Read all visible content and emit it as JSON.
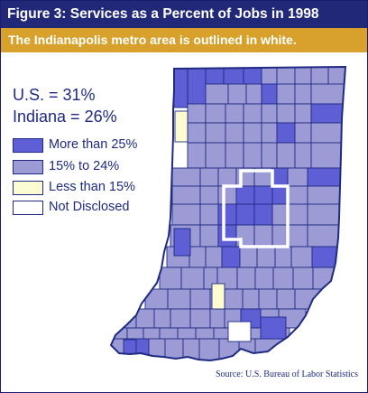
{
  "header": {
    "title": "Figure 3: Services as a Percent of Jobs in 1998",
    "subtitle": "The Indianapolis metro area is outlined in white."
  },
  "stats": {
    "us": "U.S. = 31%",
    "indiana": "Indiana = 26%"
  },
  "legend": {
    "items": [
      {
        "label": "More than 25%",
        "color": "#5e5ed5",
        "category": "high"
      },
      {
        "label": "15% to 24%",
        "color": "#9c9bd6",
        "category": "mid"
      },
      {
        "label": "Less than 15%",
        "color": "#fdfcd0",
        "category": "low"
      },
      {
        "label": "Not Disclosed",
        "color": "#ffffff",
        "category": "nd"
      }
    ]
  },
  "source": "Source: U.S. Bureau of Labor Statistics",
  "map": {
    "state": "Indiana",
    "highlight_region": "Indianapolis metro area",
    "outline_color": "#1f2b82",
    "metro_outline_color": "#ffffff"
  }
}
